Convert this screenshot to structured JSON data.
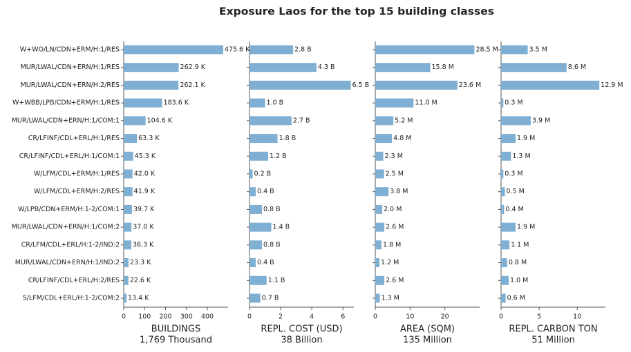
{
  "title": "Exposure Laos for the top 15 building classes",
  "categories": [
    "W+WO/LN/CDN+ERM/H:1/RES",
    "MUR/LWAL/CDN+ERN/H:1/RES",
    "MUR/LWAL/CDN+ERN/H:2/RES",
    "W+WBB/LPB/CDN+ERM/H:1/RES",
    "MUR/LWAL/CDN+ERN/H:1/COM:1",
    "CR/LFINF/CDL+ERL/H:1/RES",
    "CR/LFINF/CDL+ERL/H:1/COM:1",
    "W/LFM/CDL+ERM/H:1/RES",
    "W/LFM/CDL+ERM/H:2/RES",
    "W/LPB/CDN+ERM/H:1-2/COM:1",
    "MUR/LWAL/CDN+ERN/H:1/COM:2",
    "CR/LFM/CDL+ERL/H:1-2/IND:2",
    "MUR/LWAL/CDN+ERN/H:1/IND:2",
    "CR/LFINF/CDL+ERL/H:2/RES",
    "S/LFM/CDL+ERL/H:1-2/COM:2"
  ],
  "chart_data": [
    {
      "type": "barh",
      "color": "#7fafd3",
      "xlabel": [
        "BUILDINGS",
        "1,769 Thousand"
      ],
      "values": [
        475.6,
        262.9,
        262.1,
        183.6,
        104.6,
        63.3,
        45.3,
        42.0,
        41.9,
        39.7,
        37.0,
        36.3,
        23.3,
        22.6,
        13.4
      ],
      "value_labels": [
        "475.6 K",
        "262.9 K",
        "262.1 K",
        "183.6 K",
        "104.6 K",
        "63.3 K",
        "45.3 K",
        "42.0 K",
        "41.9 K",
        "39.7 K",
        "37.0 K",
        "36.3 K",
        "23.3 K",
        "22.6 K",
        "13.4 K"
      ],
      "xlim": [
        0,
        499
      ],
      "xticks": [
        0,
        100,
        200,
        300,
        400
      ]
    },
    {
      "type": "barh",
      "color": "#7fafd3",
      "xlabel": [
        "REPL. COST (USD)",
        "38 Billion"
      ],
      "values": [
        2.8,
        4.3,
        6.5,
        1.0,
        2.7,
        1.8,
        1.2,
        0.2,
        0.4,
        0.8,
        1.4,
        0.8,
        0.4,
        1.1,
        0.7
      ],
      "value_labels": [
        "2.8 B",
        "4.3 B",
        "6.5 B",
        "1.0 B",
        "2.7 B",
        "1.8 B",
        "1.2 B",
        "0.2 B",
        "0.4 B",
        "0.8 B",
        "1.4 B",
        "0.8 B",
        "0.4 B",
        "1.1 B",
        "0.7 B"
      ],
      "xlim": [
        0,
        6.7
      ],
      "xticks": [
        0,
        2,
        4,
        6
      ]
    },
    {
      "type": "barh",
      "color": "#7fafd3",
      "xlabel": [
        "AREA (SQM)",
        "135 Million"
      ],
      "values": [
        28.5,
        15.8,
        23.6,
        11.0,
        5.2,
        4.8,
        2.3,
        2.5,
        3.8,
        2.0,
        2.6,
        1.8,
        1.2,
        2.6,
        1.3
      ],
      "value_labels": [
        "28.5 M",
        "15.8 M",
        "23.6 M",
        "11.0 M",
        "5.2 M",
        "4.8 M",
        "2.3 M",
        "2.5 M",
        "3.8 M",
        "2.0 M",
        "2.6 M",
        "1.8 M",
        "1.2 M",
        "2.6 M",
        "1.3 M"
      ],
      "xlim": [
        0,
        30
      ],
      "xticks": [
        0,
        10,
        20
      ]
    },
    {
      "type": "barh",
      "color": "#7fafd3",
      "xlabel": [
        "REPL. CARBON TON",
        "51 Million"
      ],
      "values": [
        3.5,
        8.6,
        12.9,
        0.3,
        3.9,
        1.9,
        1.3,
        0.3,
        0.5,
        0.4,
        1.9,
        1.1,
        0.8,
        1.0,
        0.6
      ],
      "value_labels": [
        "3.5 M",
        "8.6 M",
        "12.9 M",
        "0.3 M",
        "3.9 M",
        "1.9 M",
        "1.3 M",
        "0.3 M",
        "0.5 M",
        "0.4 M",
        "1.9 M",
        "1.1 M",
        "0.8 M",
        "1.0 M",
        "0.6 M"
      ],
      "xlim": [
        0,
        13.7
      ],
      "xticks": [
        0,
        5,
        10
      ]
    }
  ]
}
